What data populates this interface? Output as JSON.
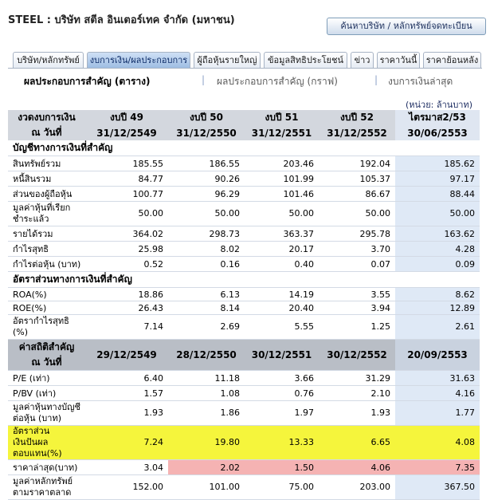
{
  "header": {
    "title": "STEEL : บริษัท สตีล อินเตอร์เทค จำกัด (มหาชน)",
    "search_button": "ค้นหาบริษัท / หลักทรัพย์จดทะเบียน"
  },
  "tabs": [
    {
      "label": "บริษัท/หลักทรัพย์",
      "active": false
    },
    {
      "label": "งบการเงิน/ผลประกอบการ",
      "active": true
    },
    {
      "label": "ผู้ถือหุ้นรายใหญ่",
      "active": false
    },
    {
      "label": "ข้อมูลสิทธิประโยชน์",
      "active": false
    },
    {
      "label": "ข่าว",
      "active": false
    },
    {
      "label": "ราคาวันนี้",
      "active": false
    },
    {
      "label": "ราคาย้อนหลัง",
      "active": false
    }
  ],
  "subnav": {
    "current": "ผลประกอบการสำคัญ (ตาราง)",
    "link1": "ผลประกอบการสำคัญ (กราฟ)",
    "link2": "งบการเงินล่าสุด",
    "separator": "|"
  },
  "unit_note": "(หน่วย: ล้านบาท)",
  "table": {
    "header1": {
      "label_line1": "งวดงบการเงิน",
      "label_line2": "ณ วันที่",
      "cols": [
        {
          "l1": "งบปี 49",
          "l2": "31/12/2549"
        },
        {
          "l1": "งบปี 50",
          "l2": "31/12/2550"
        },
        {
          "l1": "งบปี 51",
          "l2": "31/12/2551"
        },
        {
          "l1": "งบปี 52",
          "l2": "31/12/2552"
        },
        {
          "l1": "ไตรมาส2/53",
          "l2": "30/06/2553"
        }
      ]
    },
    "section1": "บัญชีทางการเงินที่สำคัญ",
    "rows1": [
      {
        "label": "สินทรัพย์รวม",
        "v": [
          "185.55",
          "186.55",
          "203.46",
          "192.04",
          "185.62"
        ]
      },
      {
        "label": "หนี้สินรวม",
        "v": [
          "84.77",
          "90.26",
          "101.99",
          "105.37",
          "97.17"
        ]
      },
      {
        "label": "ส่วนของผู้ถือหุ้น",
        "v": [
          "100.77",
          "96.29",
          "101.46",
          "86.67",
          "88.44"
        ]
      },
      {
        "label": "มูลค่าหุ้นที่เรียกชำระแล้ว",
        "v": [
          "50.00",
          "50.00",
          "50.00",
          "50.00",
          "50.00"
        ],
        "two": true
      },
      {
        "label": "รายได้รวม",
        "v": [
          "364.02",
          "298.73",
          "363.37",
          "295.78",
          "163.62"
        ]
      },
      {
        "label": "กำไรสุทธิ",
        "v": [
          "25.98",
          "8.02",
          "20.17",
          "3.70",
          "4.28"
        ]
      },
      {
        "label": "กำไรต่อหุ้น (บาท)",
        "v": [
          "0.52",
          "0.16",
          "0.40",
          "0.07",
          "0.09"
        ]
      }
    ],
    "section2": "อัตราส่วนทางการเงินที่สำคัญ",
    "rows2": [
      {
        "label": "ROA(%)",
        "v": [
          "18.86",
          "6.13",
          "14.19",
          "3.55",
          "8.62"
        ]
      },
      {
        "label": "ROE(%)",
        "v": [
          "26.43",
          "8.14",
          "20.40",
          "3.94",
          "12.89"
        ]
      },
      {
        "label": "อัตรากำไรสุทธิ (%)",
        "v": [
          "7.14",
          "2.69",
          "5.55",
          "1.25",
          "2.61"
        ],
        "two": true
      }
    ],
    "header2": {
      "label_line1": "ค่าสถิติสำคัญ",
      "label_line2": "ณ วันที่",
      "cols": [
        "29/12/2549",
        "28/12/2550",
        "30/12/2551",
        "30/12/2552",
        "20/09/2553"
      ]
    },
    "rows3": [
      {
        "label": "P/E (เท่า)",
        "v": [
          "6.40",
          "11.18",
          "3.66",
          "31.29",
          "31.63"
        ]
      },
      {
        "label": "P/BV (เท่า)",
        "v": [
          "1.57",
          "1.08",
          "0.76",
          "2.10",
          "4.16"
        ]
      },
      {
        "label": "มูลค่าหุ้นทางบัญชีต่อหุ้น (บาท)",
        "v": [
          "1.93",
          "1.86",
          "1.97",
          "1.93",
          "1.77"
        ],
        "two": true
      },
      {
        "label": "อัตราส่วนเงินปันผลตอบแทน(%)",
        "v": [
          "7.24",
          "19.80",
          "13.33",
          "6.65",
          "4.08"
        ],
        "two": true,
        "highlight": "yellow"
      },
      {
        "label": "ราคาล่าสุด(บาท)",
        "v": [
          "3.04",
          "2.02",
          "1.50",
          "4.06",
          "7.35"
        ],
        "pink_from": 1
      },
      {
        "label": "มูลค่าหลักทรัพย์ตามราคาตลาด",
        "v": [
          "152.00",
          "101.00",
          "75.00",
          "203.00",
          "367.50"
        ],
        "two": true
      }
    ]
  },
  "colors": {
    "highlight_yellow": "#f5f53c",
    "highlight_pink": "#f5b3b3",
    "header_bg": "#d3d7de",
    "accent_column": "#dfe9f6"
  }
}
